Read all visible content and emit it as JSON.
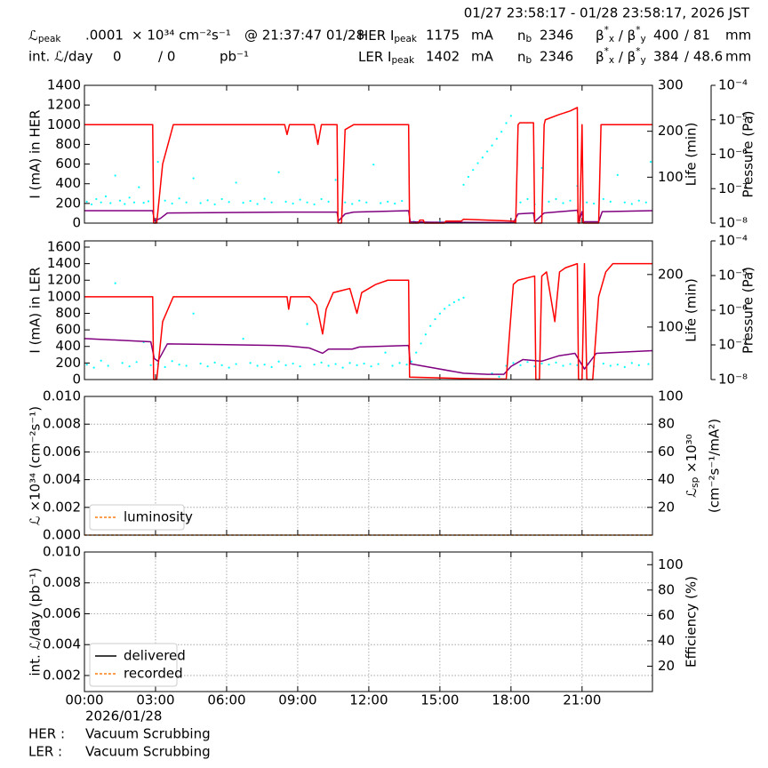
{
  "header": {
    "range": "01/27 23:58:17 - 01/28 23:58:17, 2026 JST",
    "rows": [
      [
        [
          {
            "text": "ℒ"
          },
          {
            "text": "peak",
            "shift": "sub"
          }
        ],
        ".0001",
        "× 10³⁴ cm⁻²s⁻¹",
        "@ 21:37:47 01/28",
        [
          {
            "text": "HER I"
          },
          {
            "text": "peak",
            "shift": "sub"
          }
        ],
        "1175",
        "mA",
        [
          {
            "text": "n"
          },
          {
            "text": "b",
            "shift": "sub"
          }
        ],
        "2346",
        [
          {
            "text": "β"
          },
          {
            "text": "*",
            "shift": "sup"
          },
          {
            "text": "x",
            "shift": "sub"
          },
          {
            "text": " / β"
          },
          {
            "text": "*",
            "shift": "sup"
          },
          {
            "text": "y",
            "shift": "sub"
          }
        ],
        "400",
        "/ 81",
        "mm"
      ],
      [
        "int. ℒ/day",
        "0",
        "/ 0",
        "pb⁻¹",
        [
          {
            "text": "LER I"
          },
          {
            "text": "peak",
            "shift": "sub"
          }
        ],
        "1402",
        "mA",
        [
          {
            "text": "n"
          },
          {
            "text": "b",
            "shift": "sub"
          }
        ],
        "2346",
        [
          {
            "text": "β"
          },
          {
            "text": "*",
            "shift": "sup"
          },
          {
            "text": "x",
            "shift": "sub"
          },
          {
            "text": " / β"
          },
          {
            "text": "*",
            "shift": "sup"
          },
          {
            "text": "y",
            "shift": "sub"
          }
        ],
        "384",
        "/ 48.6",
        "mm"
      ]
    ]
  },
  "chart_data": [
    {
      "type": "line",
      "ylabel": "I (mA) in HER",
      "y2label": "Life (min)",
      "y3label": "Pressure (Pa)",
      "xlim": [
        0,
        23.97
      ],
      "ylim": [
        0,
        1400
      ],
      "yticks": [
        0,
        200,
        400,
        600,
        800,
        1000,
        1200,
        1400
      ],
      "y2lim": [
        0,
        300
      ],
      "y2ticks": [
        100,
        200,
        300
      ],
      "y3lim": [
        1e-08,
        0.0001
      ],
      "y3log": true,
      "y3ticks": [
        {
          "value": 1e-08,
          "label": "10⁻⁸"
        },
        {
          "value": 1e-07,
          "label": "10⁻⁷"
        },
        {
          "value": 1e-06,
          "label": "10⁻⁶"
        },
        {
          "value": 1e-05,
          "label": "10⁻⁵"
        },
        {
          "value": 0.0001,
          "label": "10⁻⁴"
        }
      ],
      "grid": false,
      "series": [
        {
          "type": "scatter",
          "color": "#00ffff",
          "axis": "y3",
          "x": [
            0.1,
            0.3,
            0.5,
            0.7,
            0.9,
            1.1,
            1.3,
            1.5,
            1.7,
            1.9,
            2.1,
            2.3,
            2.5,
            2.7,
            3.1,
            3.4,
            3.7,
            4.0,
            4.3,
            4.6,
            4.9,
            5.2,
            5.5,
            5.8,
            6.1,
            6.4,
            6.7,
            7.0,
            7.3,
            7.6,
            7.9,
            8.2,
            8.5,
            8.8,
            9.1,
            9.4,
            9.7,
            10.0,
            10.3,
            10.6,
            11.0,
            11.3,
            11.6,
            11.9,
            12.2,
            12.5,
            12.8,
            13.1,
            13.4,
            13.9,
            14.5,
            15.0,
            15.5,
            16.0,
            16.2,
            16.4,
            16.6,
            16.8,
            17.0,
            17.2,
            17.4,
            17.6,
            17.8,
            18.0,
            18.4,
            18.7,
            19.0,
            19.3,
            19.6,
            19.9,
            20.2,
            20.5,
            20.8,
            21.2,
            21.5,
            21.9,
            22.2,
            22.5,
            22.8,
            23.1,
            23.4,
            23.7,
            23.9
          ],
          "values": [
            4.2e-08,
            3.5e-08,
            5e-08,
            4e-08,
            6e-08,
            3.8e-08,
            2.4e-07,
            4.5e-08,
            3.6e-08,
            5.5e-08,
            4e-08,
            1.1e-07,
            3.9e-08,
            4.3e-08,
            6e-07,
            4.5e-08,
            3.7e-08,
            5.2e-08,
            4e-08,
            2e-07,
            3.8e-08,
            4.6e-08,
            3.5e-08,
            5e-08,
            4.1e-08,
            1.5e-07,
            3.9e-08,
            4.4e-08,
            3.6e-08,
            5.1e-08,
            4e-08,
            3e-07,
            4.2e-08,
            3.7e-08,
            4.8e-08,
            4e-08,
            3.5e-08,
            5e-08,
            4.2e-08,
            1.8e-07,
            4e-08,
            3.6e-08,
            4.5e-08,
            4e-08,
            5e-07,
            3.8e-08,
            4.2e-08,
            3.7e-08,
            4.4e-08,
            1.1e-08,
            1.05e-08,
            1.1e-08,
            1.05e-08,
            1.3e-07,
            2.2e-07,
            3.5e-07,
            5.5e-07,
            8e-07,
            1.2e-06,
            1.8e-06,
            2.8e-06,
            4.5e-06,
            8e-06,
            1.3e-05,
            4e-08,
            5e-08,
            3.5e-08,
            4e-07,
            4.2e-08,
            5e-08,
            3.8e-08,
            4.5e-08,
            1.2e-07,
            4e-08,
            3.7e-08,
            5e-08,
            4.2e-08,
            2.5e-07,
            4e-08,
            3.6e-08,
            4.5e-08,
            4e-08,
            6e-07
          ]
        },
        {
          "type": "line",
          "color": "#800080",
          "axis": "y2",
          "x": [
            0,
            2.88,
            2.95,
            3.2,
            3.5,
            8.5,
            10.66,
            10.72,
            11.0,
            11.36,
            13.68,
            13.75,
            14.5,
            18.1,
            18.3,
            18.95,
            19.0,
            19.4,
            20.8,
            20.88,
            21.0,
            21.05,
            21.7,
            21.85,
            23.97
          ],
          "values": [
            27,
            27,
            5,
            10,
            22,
            24,
            24,
            5,
            20,
            24,
            27,
            3,
            2,
            1,
            20,
            22,
            3,
            22,
            28,
            5,
            25,
            3,
            3,
            25,
            27
          ]
        },
        {
          "type": "line",
          "color": "#ff0000",
          "axis": "y",
          "x": [
            0,
            2.88,
            2.92,
            3.05,
            3.3,
            3.75,
            8.45,
            8.55,
            8.65,
            9.7,
            9.85,
            10.0,
            10.66,
            10.7,
            10.85,
            11.0,
            11.36,
            13.68,
            13.72,
            14.1,
            14.15,
            14.3,
            14.35,
            15.2,
            15.25,
            15.9,
            16.0,
            18.1,
            18.2,
            18.3,
            18.37,
            18.95,
            19.0,
            19.3,
            19.4,
            19.45,
            20.0,
            20.5,
            20.8,
            20.83,
            20.9,
            21.0,
            21.05,
            21.7,
            21.8,
            23.97
          ],
          "values": [
            1000,
            1000,
            0,
            0,
            600,
            1000,
            1000,
            900,
            1000,
            1000,
            800,
            1000,
            1000,
            0,
            0,
            950,
            1000,
            1000,
            0,
            0,
            30,
            30,
            0,
            0,
            20,
            20,
            40,
            20,
            0,
            1000,
            1020,
            1020,
            0,
            0,
            1000,
            1050,
            1100,
            1140,
            1175,
            0,
            0,
            1000,
            0,
            0,
            1000,
            1000
          ]
        }
      ]
    },
    {
      "type": "line",
      "ylabel": "I (mA) in LER",
      "y2label": "Life (min)",
      "y3label": "Pressure (Pa)",
      "xlim": [
        0,
        23.97
      ],
      "ylim": [
        0,
        1675
      ],
      "yticks": [
        0,
        200,
        400,
        600,
        800,
        1000,
        1200,
        1400,
        1600
      ],
      "y2lim": [
        0,
        264
      ],
      "y2ticks": [
        100,
        200
      ],
      "y3lim": [
        1e-08,
        0.0001
      ],
      "y3log": true,
      "y3ticks": [
        {
          "value": 1e-08,
          "label": "10⁻⁸"
        },
        {
          "value": 1e-07,
          "label": "10⁻⁷"
        },
        {
          "value": 1e-06,
          "label": "10⁻⁶"
        },
        {
          "value": 1e-05,
          "label": "10⁻⁵"
        },
        {
          "value": 0.0001,
          "label": "10⁻⁴"
        }
      ],
      "grid": false,
      "series": [
        {
          "type": "scatter",
          "color": "#00ffff",
          "axis": "y3",
          "x": [
            0.1,
            0.4,
            0.7,
            1.0,
            1.3,
            1.6,
            1.9,
            2.2,
            2.5,
            2.8,
            3.1,
            3.4,
            3.7,
            4.0,
            4.3,
            4.6,
            4.9,
            5.2,
            5.5,
            5.8,
            6.1,
            6.4,
            6.7,
            7.0,
            7.3,
            7.6,
            7.9,
            8.2,
            8.5,
            8.8,
            9.1,
            9.4,
            9.7,
            10.0,
            10.3,
            10.6,
            10.9,
            11.2,
            11.5,
            11.8,
            12.1,
            12.4,
            12.7,
            13.0,
            13.3,
            13.6,
            13.8,
            14.0,
            14.2,
            14.4,
            14.6,
            14.8,
            15.0,
            15.2,
            15.4,
            15.6,
            15.8,
            16.0,
            17.2,
            17.5,
            17.8,
            18.1,
            18.4,
            18.7,
            19.0,
            19.3,
            19.6,
            19.9,
            20.2,
            20.5,
            20.8,
            21.2,
            21.5,
            21.9,
            22.2,
            22.5,
            22.8,
            23.1,
            23.4,
            23.8
          ],
          "values": [
            2.7e-08,
            2.2e-08,
            3.5e-08,
            2.5e-08,
            6e-06,
            3e-08,
            2.4e-08,
            3.2e-08,
            1.2e-07,
            2.6e-08,
            2.8e-08,
            2.3e-08,
            3.4e-08,
            2.7e-08,
            2.5e-08,
            8e-07,
            2.9e-08,
            2.4e-08,
            3.1e-08,
            2.6e-08,
            2.2e-08,
            2.8e-08,
            1.5e-07,
            3e-08,
            2.5e-08,
            2.7e-08,
            2.3e-08,
            3.3e-08,
            2.6e-08,
            2.9e-08,
            2.4e-08,
            4e-07,
            2.7e-08,
            3.1e-08,
            2.5e-08,
            2.8e-08,
            2.2e-08,
            3e-08,
            2.6e-08,
            2.9e-08,
            2.4e-08,
            2.8e-08,
            6e-08,
            2.5e-08,
            3e-08,
            2.7e-08,
            3.3e-08,
            6e-08,
            1.1e-07,
            2e-07,
            3.5e-07,
            5.5e-07,
            8e-07,
            1.1e-06,
            1.4e-06,
            1.7e-06,
            2e-06,
            2.3e-06,
            1.5e-08,
            1.2e-08,
            2.5e-08,
            3e-08,
            2.6e-08,
            3.2e-08,
            2.4e-08,
            2.9e-08,
            2.7e-08,
            3.1e-08,
            2.5e-08,
            2.8e-08,
            2.6e-08,
            3e-08,
            2.4e-08,
            2.9e-08,
            2.5e-08,
            2.7e-08,
            2.3e-08,
            3e-08,
            2.6e-08,
            2.8e-08
          ]
        },
        {
          "type": "line",
          "color": "#800080",
          "axis": "y2",
          "x": [
            0,
            2.8,
            2.95,
            3.1,
            3.5,
            8.0,
            8.55,
            9.5,
            10.05,
            10.3,
            11.3,
            11.6,
            13.68,
            13.75,
            16.0,
            17.0,
            17.7,
            18.0,
            18.5,
            19.3,
            20.0,
            20.7,
            20.9,
            21.1,
            21.6,
            23.97
          ],
          "values": [
            78,
            72,
            40,
            35,
            68,
            65,
            64,
            60,
            50,
            58,
            58,
            62,
            65,
            30,
            12,
            10,
            10,
            25,
            38,
            35,
            45,
            50,
            35,
            20,
            50,
            55
          ]
        },
        {
          "type": "line",
          "color": "#ff0000",
          "axis": "y",
          "x": [
            0,
            2.88,
            2.92,
            3.05,
            3.3,
            3.75,
            8.55,
            8.62,
            8.7,
            9.5,
            9.8,
            10.05,
            10.2,
            10.5,
            11.2,
            11.5,
            11.7,
            12.0,
            12.3,
            12.8,
            13.68,
            13.72,
            15.0,
            16.5,
            17.8,
            17.95,
            18.1,
            18.3,
            19.0,
            19.05,
            19.2,
            19.3,
            19.5,
            19.85,
            20.05,
            20.3,
            20.8,
            20.85,
            21.0,
            21.1,
            21.2,
            21.45,
            21.7,
            22.0,
            22.3,
            23.97
          ],
          "values": [
            1000,
            1000,
            0,
            0,
            700,
            1000,
            1000,
            850,
            1000,
            1000,
            900,
            550,
            850,
            1050,
            1100,
            800,
            1050,
            1100,
            1150,
            1200,
            1200,
            30,
            20,
            10,
            5,
            600,
            1150,
            1200,
            1250,
            0,
            0,
            1250,
            1300,
            700,
            1300,
            1350,
            1400,
            0,
            0,
            1400,
            0,
            0,
            1000,
            1300,
            1400,
            1400
          ]
        }
      ]
    },
    {
      "type": "line",
      "ylabel": "ℒ ×10³⁴ (cm⁻²s⁻¹)",
      "y2label": [
        [
          {
            "text": "ℒ"
          },
          {
            "text": "sp",
            "shift": "sub"
          },
          {
            "text": " ×10³⁰"
          }
        ],
        "(cm⁻²s⁻¹/mA²)"
      ],
      "xlim": [
        0,
        23.97
      ],
      "ylim": [
        0,
        0.01
      ],
      "yticks": [
        {
          "value": 0,
          "label": "0.000"
        },
        0.002,
        0.004,
        0.006,
        0.008,
        {
          "value": 0.01,
          "label": "0.010"
        }
      ],
      "y2lim": [
        0,
        100
      ],
      "y2ticks": [
        20,
        40,
        60,
        80,
        100
      ],
      "grid": true,
      "legend": "lower left",
      "series": [
        {
          "type": "line",
          "name": "luminosity",
          "color": "#ff7f0e",
          "axis": "y",
          "dashed": true,
          "x": [
            0,
            23.97
          ],
          "values": [
            0,
            0
          ]
        }
      ]
    },
    {
      "type": "line",
      "ylabel": "int. ℒ/day (pb⁻¹)",
      "y2label": "Efficiency (%)",
      "xlim": [
        0,
        23.97
      ],
      "ylim": [
        0.00096,
        0.01
      ],
      "yticks": [
        0.002,
        0.004,
        0.006,
        0.008,
        {
          "value": 0.01,
          "label": "0.010"
        }
      ],
      "y2lim": [
        0,
        110
      ],
      "y2ticks": [
        20,
        40,
        60,
        80,
        100
      ],
      "xticks": [
        {
          "value": 0,
          "label": "00:00"
        },
        {
          "value": 3,
          "label": "03:00"
        },
        {
          "value": 6,
          "label": "06:00"
        },
        {
          "value": 9,
          "label": "09:00"
        },
        {
          "value": 12,
          "label": "12:00"
        },
        {
          "value": 15,
          "label": "15:00"
        },
        {
          "value": 18,
          "label": "18:00"
        },
        {
          "value": 21,
          "label": "21:00"
        }
      ],
      "grid": true,
      "legend": "lower left",
      "series": [
        {
          "type": "line",
          "name": "delivered",
          "color": "#000000",
          "axis": "y",
          "x": [],
          "values": []
        },
        {
          "type": "line",
          "name": "recorded",
          "color": "#ff7f0e",
          "axis": "y",
          "dashed": true,
          "x": [],
          "values": []
        }
      ]
    }
  ],
  "footer": {
    "date": "2026/01/28",
    "her_label": "HER :",
    "her_status": "Vacuum Scrubbing",
    "ler_label": "LER :",
    "ler_status": "Vacuum Scrubbing"
  }
}
